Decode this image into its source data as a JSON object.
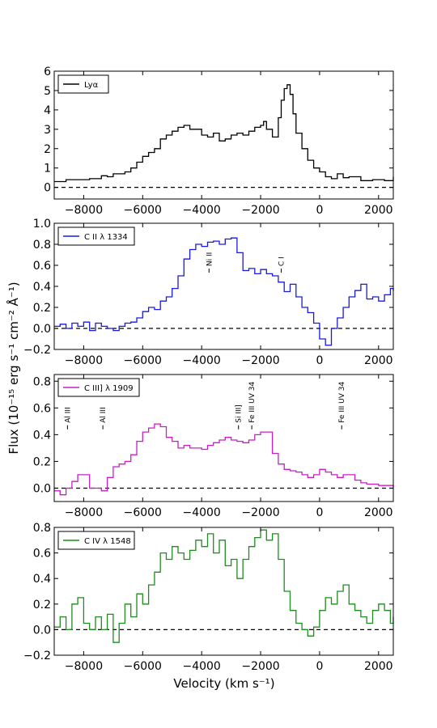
{
  "figure": {
    "xlabel": "Velocity (km s⁻¹)",
    "ylabel": "Flux (10⁻¹⁵ erg s⁻¹ cm⁻² Å⁻¹)"
  },
  "chart_data": [
    {
      "type": "line",
      "legend": "Lyα",
      "color": "#000000",
      "xlim": [
        -9000,
        2500
      ],
      "ylim": [
        -0.6,
        6
      ],
      "yticks": [
        0,
        1,
        2,
        3,
        4,
        5,
        6
      ],
      "ytick_labels": [
        "0",
        "1",
        "2",
        "3",
        "4",
        "5",
        "6"
      ],
      "xticks": [
        -8000,
        -6000,
        -4000,
        -2000,
        0,
        2000
      ],
      "xtick_labels": [
        "−8000",
        "−6000",
        "−4000",
        "−2000",
        "0",
        "2000"
      ],
      "zero_line": 0,
      "annotations": [],
      "series": [
        {
          "x": [
            -9000,
            -8600,
            -8200,
            -7800,
            -7400,
            -7200,
            -7000,
            -6600,
            -6400,
            -6200,
            -6000,
            -5800,
            -5600,
            -5400,
            -5200,
            -5000,
            -4800,
            -4600,
            -4400,
            -4200,
            -4000,
            -3800,
            -3600,
            -3400,
            -3200,
            -3000,
            -2800,
            -2600,
            -2400,
            -2200,
            -2000,
            -1900,
            -1800,
            -1600,
            -1400,
            -1300,
            -1200,
            -1100,
            -1000,
            -900,
            -800,
            -600,
            -400,
            -200,
            0,
            200,
            400,
            600,
            800,
            1000,
            1400,
            1800,
            2200,
            2500
          ],
          "y": [
            0.3,
            0.4,
            0.4,
            0.45,
            0.6,
            0.55,
            0.7,
            0.8,
            1.0,
            1.3,
            1.6,
            1.8,
            2.0,
            2.5,
            2.7,
            2.9,
            3.1,
            3.2,
            3.0,
            3.0,
            2.7,
            2.6,
            2.8,
            2.4,
            2.5,
            2.7,
            2.8,
            2.7,
            2.9,
            3.1,
            3.2,
            3.4,
            3.0,
            2.6,
            3.6,
            4.5,
            5.1,
            5.3,
            4.8,
            3.8,
            2.8,
            2.0,
            1.4,
            1.0,
            0.8,
            0.55,
            0.45,
            0.7,
            0.5,
            0.55,
            0.35,
            0.4,
            0.35,
            0.55
          ]
        }
      ]
    },
    {
      "type": "line",
      "legend": "C II λ 1334",
      "color": "#1a1adc",
      "xlim": [
        -9000,
        2500
      ],
      "ylim": [
        -0.2,
        1.0
      ],
      "yticks": [
        -0.2,
        0.0,
        0.2,
        0.4,
        0.6,
        0.8,
        1.0
      ],
      "ytick_labels": [
        "−0.2",
        "0.0",
        "0.2",
        "0.4",
        "0.6",
        "0.8",
        "1.0"
      ],
      "xticks": [
        -8000,
        -6000,
        -4000,
        -2000,
        0,
        2000
      ],
      "xtick_labels": [
        "−8000",
        "−6000",
        "−4000",
        "−2000",
        "0",
        "2000"
      ],
      "zero_line": 0,
      "annotations": [
        {
          "label": "Ni II",
          "x": -3750,
          "y": 0.53
        },
        {
          "label": "C I",
          "x": -1300,
          "y": 0.53
        }
      ],
      "series": [
        {
          "x": [
            -9000,
            -8800,
            -8600,
            -8400,
            -8200,
            -8000,
            -7800,
            -7600,
            -7400,
            -7200,
            -7000,
            -6800,
            -6600,
            -6400,
            -6200,
            -6000,
            -5800,
            -5600,
            -5400,
            -5200,
            -5000,
            -4800,
            -4600,
            -4400,
            -4200,
            -4000,
            -3800,
            -3600,
            -3400,
            -3200,
            -3000,
            -2800,
            -2600,
            -2400,
            -2200,
            -2000,
            -1800,
            -1600,
            -1400,
            -1200,
            -1000,
            -800,
            -600,
            -400,
            -200,
            0,
            200,
            400,
            600,
            800,
            1000,
            1200,
            1400,
            1600,
            1800,
            2000,
            2200,
            2400,
            2500
          ],
          "y": [
            0.02,
            0.04,
            0.0,
            0.05,
            0.02,
            0.06,
            -0.02,
            0.05,
            0.02,
            0.0,
            -0.02,
            0.02,
            0.05,
            0.06,
            0.1,
            0.16,
            0.2,
            0.18,
            0.26,
            0.3,
            0.38,
            0.5,
            0.66,
            0.75,
            0.8,
            0.78,
            0.82,
            0.83,
            0.8,
            0.85,
            0.86,
            0.72,
            0.55,
            0.57,
            0.52,
            0.56,
            0.52,
            0.5,
            0.44,
            0.35,
            0.42,
            0.3,
            0.2,
            0.15,
            0.05,
            -0.1,
            -0.16,
            0.0,
            0.1,
            0.2,
            0.3,
            0.36,
            0.42,
            0.28,
            0.3,
            0.26,
            0.32,
            0.38,
            0.36
          ]
        }
      ]
    },
    {
      "type": "line",
      "legend": "C III] λ 1909",
      "color": "#c81ec8",
      "xlim": [
        -9000,
        2500
      ],
      "ylim": [
        -0.1,
        0.85
      ],
      "yticks": [
        0.0,
        0.2,
        0.4,
        0.6,
        0.8
      ],
      "ytick_labels": [
        "0.0",
        "0.2",
        "0.4",
        "0.6",
        "0.8"
      ],
      "xticks": [
        -8000,
        -6000,
        -4000,
        -2000,
        0,
        2000
      ],
      "xtick_labels": [
        "−8000",
        "−6000",
        "−4000",
        "−2000",
        "0",
        "2000"
      ],
      "zero_line": 0,
      "annotations": [
        {
          "label": "Al III",
          "x": -8550,
          "y": 0.44
        },
        {
          "label": "Al III",
          "x": -7350,
          "y": 0.44
        },
        {
          "label": "Si III]",
          "x": -2750,
          "y": 0.44
        },
        {
          "label": "Fe III UV 34",
          "x": -2300,
          "y": 0.44
        },
        {
          "label": "Fe III UV 34",
          "x": 750,
          "y": 0.44
        }
      ],
      "series": [
        {
          "x": [
            -9000,
            -8800,
            -8600,
            -8400,
            -8200,
            -8000,
            -7800,
            -7600,
            -7400,
            -7200,
            -7000,
            -6800,
            -6600,
            -6400,
            -6200,
            -6000,
            -5800,
            -5600,
            -5400,
            -5200,
            -5000,
            -4800,
            -4600,
            -4400,
            -4200,
            -4000,
            -3800,
            -3600,
            -3400,
            -3200,
            -3000,
            -2800,
            -2600,
            -2400,
            -2200,
            -2000,
            -1800,
            -1600,
            -1400,
            -1200,
            -1000,
            -800,
            -600,
            -400,
            -200,
            0,
            200,
            400,
            600,
            800,
            1000,
            1200,
            1400,
            1600,
            1800,
            2000,
            2200,
            2400,
            2500
          ],
          "y": [
            -0.02,
            -0.05,
            0.0,
            0.05,
            0.1,
            0.1,
            0.0,
            0.0,
            -0.02,
            0.08,
            0.16,
            0.18,
            0.2,
            0.25,
            0.35,
            0.42,
            0.45,
            0.48,
            0.46,
            0.38,
            0.35,
            0.3,
            0.32,
            0.3,
            0.3,
            0.29,
            0.32,
            0.34,
            0.36,
            0.38,
            0.36,
            0.35,
            0.34,
            0.36,
            0.4,
            0.42,
            0.42,
            0.26,
            0.18,
            0.14,
            0.13,
            0.12,
            0.1,
            0.08,
            0.1,
            0.14,
            0.12,
            0.1,
            0.08,
            0.1,
            0.1,
            0.06,
            0.04,
            0.03,
            0.03,
            0.02,
            0.02,
            0.02,
            0.0
          ]
        }
      ]
    },
    {
      "type": "line",
      "legend": "C IV λ 1548",
      "color": "#1e8c1e",
      "xlim": [
        -9000,
        2500
      ],
      "ylim": [
        -0.2,
        0.8
      ],
      "yticks": [
        -0.2,
        0.0,
        0.2,
        0.4,
        0.6,
        0.8
      ],
      "ytick_labels": [
        "−0.2",
        "0.0",
        "0.2",
        "0.4",
        "0.6",
        "0.8"
      ],
      "xticks": [
        -8000,
        -6000,
        -4000,
        -2000,
        0,
        2000
      ],
      "xtick_labels": [
        "−8000",
        "−6000",
        "−4000",
        "−2000",
        "0",
        "2000"
      ],
      "zero_line": 0,
      "annotations": [],
      "series": [
        {
          "x": [
            -9000,
            -8800,
            -8600,
            -8400,
            -8200,
            -8000,
            -7800,
            -7600,
            -7400,
            -7200,
            -7000,
            -6800,
            -6600,
            -6400,
            -6200,
            -6000,
            -5800,
            -5600,
            -5400,
            -5200,
            -5000,
            -4800,
            -4600,
            -4400,
            -4200,
            -4000,
            -3800,
            -3600,
            -3400,
            -3200,
            -3000,
            -2800,
            -2600,
            -2400,
            -2200,
            -2000,
            -1800,
            -1600,
            -1400,
            -1200,
            -1000,
            -800,
            -600,
            -400,
            -200,
            0,
            200,
            400,
            600,
            800,
            1000,
            1200,
            1400,
            1600,
            1800,
            2000,
            2200,
            2400,
            2500
          ],
          "y": [
            0.02,
            0.1,
            0.0,
            0.2,
            0.25,
            0.05,
            0.0,
            0.1,
            0.0,
            0.12,
            -0.1,
            0.05,
            0.2,
            0.1,
            0.28,
            0.2,
            0.35,
            0.45,
            0.6,
            0.55,
            0.65,
            0.6,
            0.55,
            0.62,
            0.7,
            0.65,
            0.75,
            0.6,
            0.7,
            0.5,
            0.55,
            0.4,
            0.55,
            0.65,
            0.72,
            0.78,
            0.7,
            0.75,
            0.55,
            0.3,
            0.15,
            0.05,
            0.0,
            -0.05,
            0.02,
            0.15,
            0.25,
            0.2,
            0.3,
            0.35,
            0.2,
            0.15,
            0.1,
            0.05,
            0.15,
            0.2,
            0.15,
            0.05,
            0.1
          ]
        }
      ]
    }
  ]
}
